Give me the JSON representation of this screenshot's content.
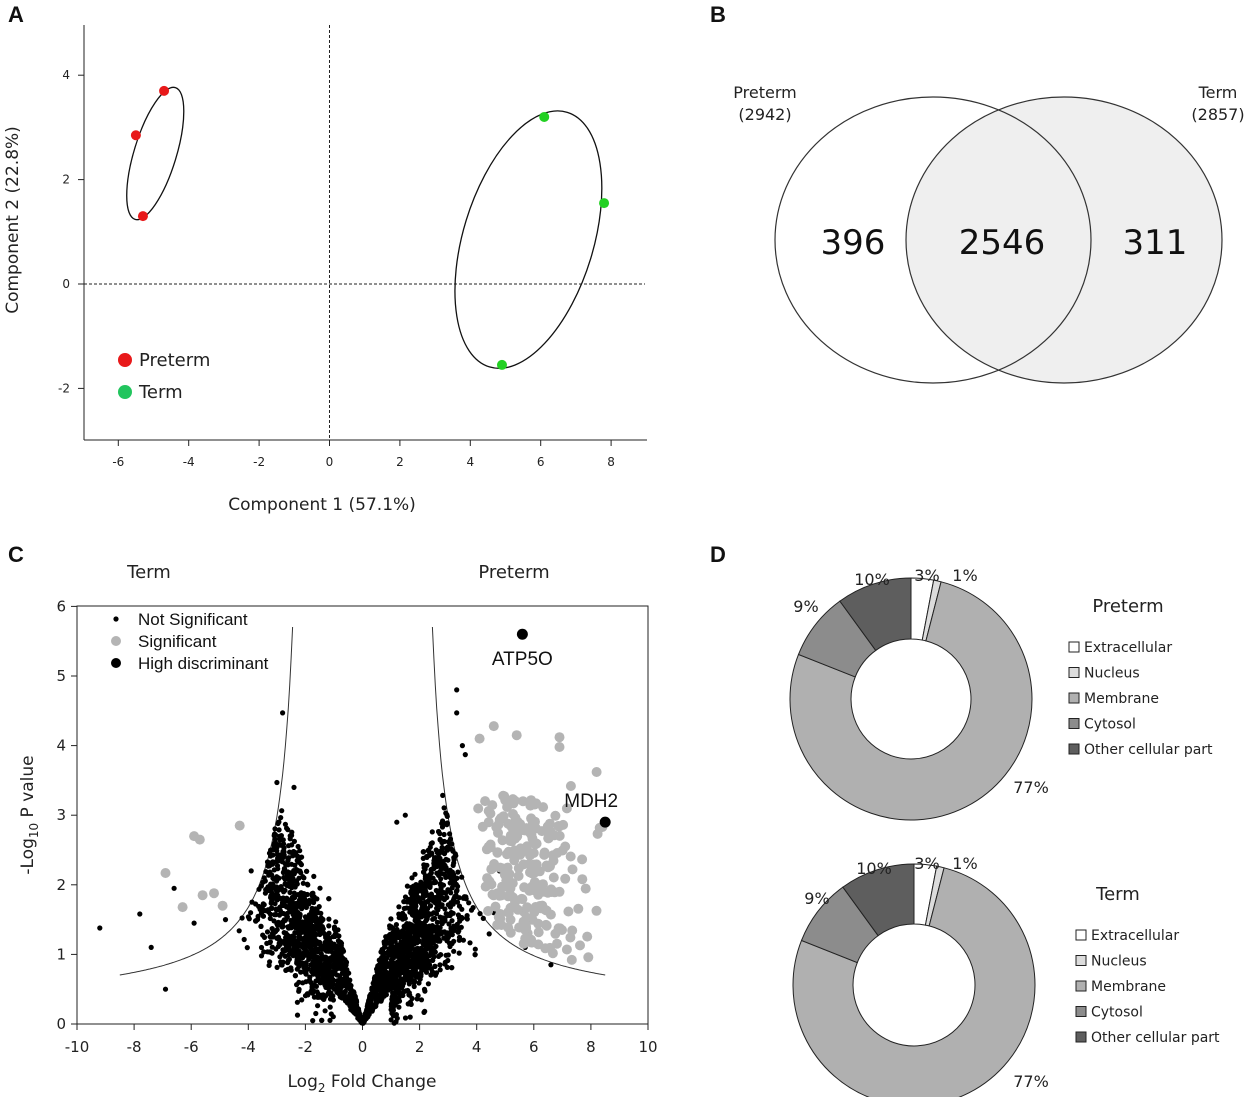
{
  "panels": {
    "A": "A",
    "B": "B",
    "C": "C",
    "D": "D"
  },
  "chart_data": [
    {
      "panel": "A",
      "type": "scatter",
      "xlabel": "Component 1 (57.1%)",
      "ylabel": "Component 2  (22.8%)",
      "xlim": [
        -7,
        9
      ],
      "ylim": [
        -3,
        5
      ],
      "xticks": [
        -6,
        -4,
        -2,
        0,
        2,
        4,
        6,
        8
      ],
      "yticks": [
        -2,
        0,
        2,
        4
      ],
      "reference_lines": "dashed at x=0 and y=0",
      "series": [
        {
          "name": "Preterm",
          "color": "#e8191a",
          "x": [
            -4.7,
            -5.5,
            -5.3
          ],
          "y": [
            3.7,
            2.85,
            1.3
          ]
        },
        {
          "name": "Term",
          "color": "#22d022",
          "x": [
            6.1,
            7.8,
            4.9
          ],
          "y": [
            3.2,
            1.55,
            -1.55
          ]
        }
      ],
      "ellipses": [
        {
          "group": "Preterm",
          "cx": -4.95,
          "cy": 2.5,
          "rx": 0.6,
          "ry": 1.32,
          "angle_deg": 17
        },
        {
          "group": "Term",
          "cx": 5.65,
          "cy": 0.85,
          "rx": 1.85,
          "ry": 2.55,
          "angle_deg": 17
        }
      ],
      "legend_labels": [
        "Preterm",
        "Term"
      ],
      "legend_placement": "bottom-left"
    },
    {
      "panel": "B",
      "type": "venn",
      "sets": [
        {
          "label": "Preterm",
          "count_label": "(2942)",
          "only": "396"
        },
        {
          "label": "Term",
          "count_label": "(2857)",
          "only": "311"
        }
      ],
      "intersection": "2546"
    },
    {
      "panel": "C",
      "type": "scatter",
      "xlabel_main": "Log",
      "xlabel_sub": "2",
      "xlabel_rest": " Fold Change",
      "ylabel_main": "-Log",
      "ylabel_sub": "10",
      "ylabel_rest": " P value",
      "xlim": [
        -10,
        10
      ],
      "ylim": [
        0,
        6
      ],
      "xticks": [
        -10,
        -8,
        -6,
        -4,
        -2,
        0,
        2,
        4,
        6,
        8,
        10
      ],
      "yticks": [
        0,
        1,
        2,
        3,
        4,
        5,
        6
      ],
      "side_labels": [
        "Term",
        "Preterm"
      ],
      "legend_labels": [
        "Not Significant",
        "Significant",
        "High discriminant"
      ],
      "legend_placement": "top-left",
      "threshold_curve": "y = 0.25 + 3.0 / (|x| - 1.9)",
      "high_discriminant": [
        {
          "label": "ATP5O",
          "x": 5.6,
          "y": 5.6
        },
        {
          "label": "MDH2",
          "x": 8.5,
          "y": 2.9
        }
      ],
      "series": [
        {
          "name": "Not Significant",
          "color": "#000000",
          "n_points": "approx. 2800 (dense cloud)"
        },
        {
          "name": "Significant",
          "color": "#b4b4b4",
          "n_points": "approx. 240"
        },
        {
          "name": "High discriminant",
          "color": "#000000",
          "n_points": 2
        }
      ]
    },
    {
      "panel": "D",
      "type": "pie",
      "donuts": [
        {
          "title": "Preterm",
          "categories": [
            "Extracellular",
            "Nucleus",
            "Membrane",
            "Cytosol",
            "Other cellular part"
          ],
          "values": [
            3,
            1,
            77,
            9,
            10
          ],
          "labels": [
            "3%",
            "1%",
            "77%",
            "9%",
            "10%"
          ]
        },
        {
          "title": "Term",
          "categories": [
            "Extracellular",
            "Nucleus",
            "Membrane",
            "Cytosol",
            "Other cellular part"
          ],
          "values": [
            3,
            1,
            77,
            9,
            10
          ],
          "labels": [
            "3%",
            "1%",
            "77%",
            "9%",
            "10%"
          ]
        }
      ],
      "colors": [
        "#ffffff",
        "#dcdcdc",
        "#b0b0b0",
        "#8c8c8c",
        "#5e5e5e"
      ]
    }
  ]
}
